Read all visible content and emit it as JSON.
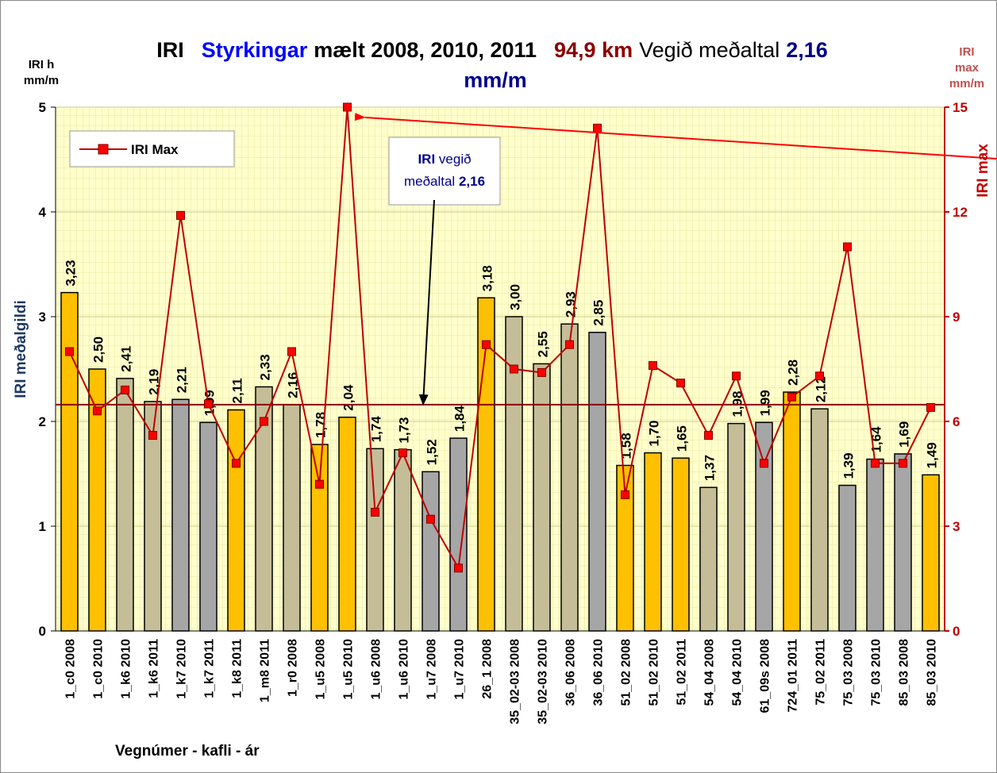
{
  "chart_data": {
    "type": "bar_line",
    "title_parts": [
      {
        "text": "IRI",
        "color": "#000000"
      },
      {
        "text": "Styrkingar",
        "color": "#0000FF"
      },
      {
        "text": "mælt 2008, 2010, 2011",
        "color": "#000000"
      },
      {
        "text": "94,9 km",
        "color": "#8B0000"
      },
      {
        "text": "Vegið meðaltal",
        "color": "#000000"
      },
      {
        "text": "2,16",
        "color": "#00008B"
      }
    ],
    "title_line2": "mm/m",
    "y_label_top": [
      "IRI h",
      "mm/m"
    ],
    "y_label": "IRI meðalgildi",
    "y2_label_top": [
      "IRI",
      "max",
      "mm/m"
    ],
    "y2_label": "IRI  max",
    "x_label": "Vegnúmer - kafli - ár",
    "categories": [
      "1_c0 2008",
      "1_c0 2010",
      "1_k6 2010",
      "1_k6 2011",
      "1_k7 2010",
      "1_k7 2011",
      "1_k8 2011",
      "1_m8 2011",
      "1_r0 2008",
      "1_u5 2008",
      "1_u5 2010",
      "1_u6 2008",
      "1_u6 2010",
      "1_u7 2008",
      "1_u7 2010",
      "26_1 2008",
      "35_02-03 2008",
      "35_02-03 2010",
      "36_06 2008",
      "36_06 2010",
      "51_02 2008",
      "51_02 2010",
      "51_02 2011",
      "54_04 2008",
      "54_04 2010",
      "61_09s 2008",
      "724_01 2011",
      "75_02 2011",
      "75_03 2008",
      "75_03 2010",
      "85_03 2008",
      "85_03 2010"
    ],
    "series": [
      {
        "type": "bar",
        "values": [
          3.23,
          2.5,
          2.41,
          2.19,
          2.21,
          1.99,
          2.11,
          2.33,
          2.16,
          1.78,
          2.04,
          1.74,
          1.73,
          1.52,
          1.84,
          3.18,
          3.0,
          2.55,
          2.93,
          2.85,
          1.58,
          1.7,
          1.65,
          1.37,
          1.98,
          1.99,
          2.28,
          2.12,
          1.39,
          1.64,
          1.69,
          1.49
        ],
        "value_labels": [
          "3,23",
          "2,50",
          "2,41",
          "2,19",
          "2,21",
          "1,99",
          "2,11",
          "2,33",
          "2,16",
          "1,78",
          "2,04",
          "1,74",
          "1,73",
          "1,52",
          "1,84",
          "3,18",
          "3,00",
          "2,55",
          "2,93",
          "2,85",
          "1,58",
          "1,70",
          "1,65",
          "1,37",
          "1,98",
          "1,99",
          "2,28",
          "2,12",
          "1,39",
          "1,64",
          "1,69",
          "1,49"
        ],
        "colors": [
          "#FFC000",
          "#FFC000",
          "#C4BD97",
          "#C4BD97",
          "#A6A6A6",
          "#A6A6A6",
          "#FFC000",
          "#C4BD97",
          "#C4BD97",
          "#FFC000",
          "#FFC000",
          "#C4BD97",
          "#C4BD97",
          "#A6A6A6",
          "#A6A6A6",
          "#FFC000",
          "#C4BD97",
          "#C4BD97",
          "#C4BD97",
          "#A6A6A6",
          "#FFC000",
          "#FFC000",
          "#FFC000",
          "#C4BD97",
          "#C4BD97",
          "#A6A6A6",
          "#FFC000",
          "#C4BD97",
          "#A6A6A6",
          "#A6A6A6",
          "#A6A6A6",
          "#FFC000"
        ]
      },
      {
        "type": "line",
        "name": "IRI Max",
        "color": "#C00000",
        "marker_color": "#FF0000",
        "axis": "y2",
        "values": [
          8.0,
          6.3,
          6.9,
          5.6,
          11.9,
          6.5,
          4.8,
          6.0,
          8.0,
          4.2,
          15.0,
          3.4,
          5.1,
          3.2,
          1.8,
          8.2,
          7.5,
          7.4,
          8.2,
          14.4,
          3.9,
          7.6,
          7.1,
          5.6,
          7.3,
          4.8,
          6.7,
          7.3,
          11.0,
          4.8,
          4.8,
          6.4
        ]
      }
    ],
    "reference_line": {
      "value": 2.16,
      "color": "#8B0000"
    },
    "annotation": [
      "IRI",
      "vegið",
      "meðaltal",
      "2,16"
    ],
    "ylim": [
      0,
      5
    ],
    "yticks": [
      0,
      1,
      2,
      3,
      4,
      5
    ],
    "y2lim": [
      0,
      15
    ],
    "y2ticks": [
      0,
      3,
      6,
      9,
      12,
      15
    ],
    "grid": true,
    "legend": "upper left"
  }
}
